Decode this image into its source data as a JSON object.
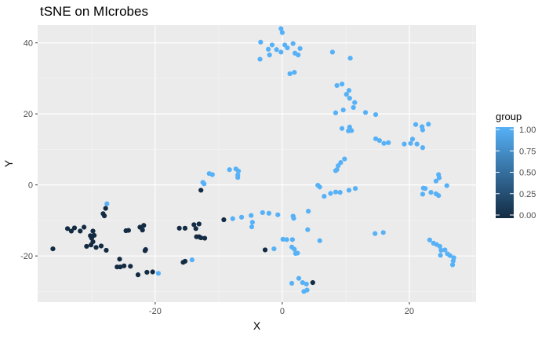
{
  "chart_data": {
    "type": "scatter",
    "title": "tSNE on MIcrobes",
    "xlabel": "X",
    "ylabel": "Y",
    "xlim": [
      -38.5,
      30.5
    ],
    "ylim": [
      -33,
      45
    ],
    "x_ticks": [
      -20,
      0,
      20
    ],
    "y_ticks": [
      -20,
      0,
      20,
      40
    ],
    "x_tick_labels": [
      "-20",
      "0",
      "20"
    ],
    "y_tick_labels": [
      "-20",
      "0",
      "20",
      "40"
    ],
    "grid": true,
    "panel_background": "#ebebeb",
    "legend": {
      "title": "group",
      "position": "right",
      "labels": [
        "1.00",
        "0.75",
        "0.50",
        "0.25",
        "0.00"
      ],
      "values": [
        1.0,
        0.75,
        0.5,
        0.25,
        0.0
      ],
      "color_low": "#132B43",
      "color_high": "#56B1F7"
    },
    "series": [
      {
        "group_value": 1,
        "color": "#56B1F7",
        "points": [
          [
            -0.2,
            44.0
          ],
          [
            0.0,
            42.9
          ],
          [
            -3.4,
            40.2
          ],
          [
            -1.6,
            39.4
          ],
          [
            0.4,
            39.4
          ],
          [
            1.7,
            39.8
          ],
          [
            -2.2,
            38.2
          ],
          [
            -0.9,
            38.1
          ],
          [
            0.8,
            38.6
          ],
          [
            2.8,
            38.4
          ],
          [
            -3.5,
            35.4
          ],
          [
            -2.0,
            36.6
          ],
          [
            -0.2,
            37.4
          ],
          [
            2.0,
            37.1
          ],
          [
            2.5,
            36.6
          ],
          [
            1.2,
            31.3
          ],
          [
            1.9,
            31.7
          ],
          [
            7.9,
            37.4
          ],
          [
            10.7,
            35.7
          ],
          [
            8.6,
            28.0
          ],
          [
            9.4,
            28.4
          ],
          [
            10.5,
            26.6
          ],
          [
            10.1,
            25.5
          ],
          [
            10.6,
            24.4
          ],
          [
            11.4,
            23.2
          ],
          [
            9.6,
            21.1
          ],
          [
            11.2,
            21.8
          ],
          [
            8.4,
            20.3
          ],
          [
            13.1,
            20.4
          ],
          [
            14.7,
            19.8
          ],
          [
            9.4,
            15.9
          ],
          [
            10.4,
            15.2
          ],
          [
            10.6,
            16.3
          ],
          [
            10.9,
            15.3
          ],
          [
            14.7,
            13.0
          ],
          [
            15.3,
            12.5
          ],
          [
            16.0,
            11.7
          ],
          [
            16.7,
            11.9
          ],
          [
            19.2,
            11.5
          ],
          [
            20.2,
            11.7
          ],
          [
            20.5,
            12.9
          ],
          [
            21.2,
            11.5
          ],
          [
            22.1,
            10.5
          ],
          [
            21.0,
            17.0
          ],
          [
            22.0,
            16.4
          ],
          [
            22.1,
            15.5
          ],
          [
            23.0,
            17.1
          ],
          [
            24.6,
            2.9
          ],
          [
            24.7,
            2.0
          ],
          [
            24.2,
            1.1
          ],
          [
            25.9,
            -0.2
          ],
          [
            22.2,
            -0.9
          ],
          [
            22.5,
            -1.0
          ],
          [
            22.1,
            -2.6
          ],
          [
            23.4,
            -2.1
          ],
          [
            24.2,
            -2.5
          ],
          [
            24.6,
            -3.0
          ],
          [
            23.2,
            -15.5
          ],
          [
            23.8,
            -16.4
          ],
          [
            24.3,
            -16.8
          ],
          [
            24.8,
            -17.3
          ],
          [
            25.0,
            -18.4
          ],
          [
            25.6,
            -18.3
          ],
          [
            24.9,
            -19.8
          ],
          [
            26.0,
            -19.4
          ],
          [
            26.4,
            -19.9
          ],
          [
            26.9,
            -21.4
          ],
          [
            26.8,
            -22.5
          ],
          [
            27.0,
            -20.5
          ],
          [
            9.8,
            7.3
          ],
          [
            9.2,
            6.3
          ],
          [
            8.8,
            5.4
          ],
          [
            8.6,
            4.3
          ],
          [
            8.4,
            4.0
          ],
          [
            5.6,
            -0.1
          ],
          [
            5.9,
            -0.6
          ],
          [
            6.6,
            -3.2
          ],
          [
            7.6,
            -2.4
          ],
          [
            8.4,
            -2.0
          ],
          [
            9.1,
            -2.1
          ],
          [
            10.5,
            -1.5
          ],
          [
            11.5,
            -1.0
          ],
          [
            4.1,
            -7.4
          ],
          [
            1.7,
            -8.8
          ],
          [
            1.8,
            -9.4
          ],
          [
            -0.7,
            -8.4
          ],
          [
            -2.1,
            -8.0
          ],
          [
            -3.1,
            -7.8
          ],
          [
            -4.9,
            -8.6
          ],
          [
            -4.7,
            -10.5
          ],
          [
            -4.8,
            -11.8
          ],
          [
            -6.4,
            -9.1
          ],
          [
            -7.8,
            -9.5
          ],
          [
            -8.3,
            4.3
          ],
          [
            -7.3,
            4.5
          ],
          [
            -6.9,
            3.9
          ],
          [
            -7.0,
            2.8
          ],
          [
            -7.0,
            2.1
          ],
          [
            -11.0,
            2.9
          ],
          [
            -11.5,
            3.2
          ],
          [
            -12.5,
            0.7
          ],
          [
            -12.3,
            0.3
          ],
          [
            0.1,
            -15.3
          ],
          [
            0.7,
            -15.4
          ],
          [
            1.5,
            -17.5
          ],
          [
            1.9,
            -18.1
          ],
          [
            2.1,
            -19.3
          ],
          [
            2.4,
            -19.2
          ],
          [
            1.6,
            -15.4
          ],
          [
            -1.3,
            -18.0
          ],
          [
            4.0,
            -12.6
          ],
          [
            5.9,
            -15.7
          ],
          [
            2.6,
            -26.3
          ],
          [
            1.5,
            -27.7
          ],
          [
            3.2,
            -27.5
          ],
          [
            3.8,
            -27.9
          ],
          [
            3.9,
            -29.6
          ],
          [
            3.4,
            -30.0
          ],
          [
            14.6,
            -13.7
          ],
          [
            15.9,
            -13.4
          ],
          [
            -14.2,
            -21.1
          ],
          [
            -19.5,
            -24.9
          ],
          [
            -27.6,
            -5.3
          ]
        ]
      },
      {
        "group_value": 0,
        "color": "#132B43",
        "points": [
          [
            -36.1,
            -18.0
          ],
          [
            -33.8,
            -12.3
          ],
          [
            -33.2,
            -13.0
          ],
          [
            -32.7,
            -12.1
          ],
          [
            -31.8,
            -13.0
          ],
          [
            -31.2,
            -11.9
          ],
          [
            -30.8,
            -17.3
          ],
          [
            -30.1,
            -16.9
          ],
          [
            -30.0,
            -15.0
          ],
          [
            -29.8,
            -16.0
          ],
          [
            -29.6,
            -14.2
          ],
          [
            -29.3,
            -17.6
          ],
          [
            -29.8,
            -13.0
          ],
          [
            -30.2,
            -14.3
          ],
          [
            -28.5,
            -17.2
          ],
          [
            -28.2,
            -8.1
          ],
          [
            -28.0,
            -8.7
          ],
          [
            -27.8,
            -6.6
          ],
          [
            -27.7,
            -18.4
          ],
          [
            -26.0,
            -23.1
          ],
          [
            -25.6,
            -20.9
          ],
          [
            -25.5,
            -23.1
          ],
          [
            -24.9,
            -22.8
          ],
          [
            -24.6,
            -12.9
          ],
          [
            -24.2,
            -12.8
          ],
          [
            -23.9,
            -22.9
          ],
          [
            -22.7,
            -25.3
          ],
          [
            -22.4,
            -11.9
          ],
          [
            -21.8,
            -11.4
          ],
          [
            -22.0,
            -12.7
          ],
          [
            -21.6,
            -18.5
          ],
          [
            -21.5,
            -18.2
          ],
          [
            -21.3,
            -24.6
          ],
          [
            -20.4,
            -24.5
          ],
          [
            -16.2,
            -12.2
          ],
          [
            -15.3,
            -12.2
          ],
          [
            -15.6,
            -21.8
          ],
          [
            -15.3,
            -21.5
          ],
          [
            -13.9,
            -11.2
          ],
          [
            -13.6,
            -12.3
          ],
          [
            -13.1,
            -11.0
          ],
          [
            -13.5,
            -14.6
          ],
          [
            -13.1,
            -14.6
          ],
          [
            -12.8,
            -14.9
          ],
          [
            -12.2,
            -15.0
          ],
          [
            -12.8,
            -1.5
          ],
          [
            -9.2,
            -9.8
          ],
          [
            -2.7,
            -18.3
          ],
          [
            4.8,
            -27.5
          ]
        ]
      }
    ]
  }
}
